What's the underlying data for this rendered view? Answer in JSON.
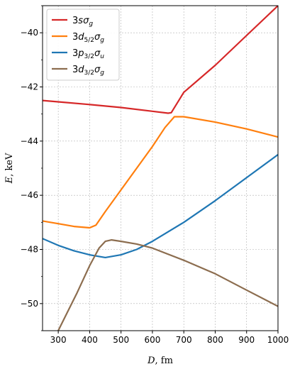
{
  "chart_data": {
    "type": "line",
    "xlabel_var": "D",
    "xlabel_unit": ", fm",
    "ylabel_var": "E",
    "ylabel_unit": ", keV",
    "xlim": [
      250,
      1000
    ],
    "ylim": [
      -51,
      -39
    ],
    "xticks": [
      300,
      400,
      500,
      600,
      700,
      800,
      900,
      1000
    ],
    "yticks": [
      -50,
      -48,
      -46,
      -44,
      -42,
      -40
    ],
    "grid": true,
    "legend_position": "top-left",
    "series": [
      {
        "name": "3sσg",
        "legend": {
          "main": "3",
          "ital": "s",
          "sym": "σ",
          "sub": "g",
          "frac": ""
        },
        "color": "#d62728",
        "x": [
          250,
          300,
          400,
          500,
          600,
          650,
          660,
          700,
          800,
          900,
          1000
        ],
        "y": [
          -42.5,
          -42.55,
          -42.65,
          -42.76,
          -42.9,
          -42.97,
          -42.95,
          -42.2,
          -41.2,
          -40.1,
          -39.0
        ]
      },
      {
        "name": "3d5/2σg",
        "legend": {
          "main": "3",
          "ital": "d",
          "frac": "5/2",
          "sym": "σ",
          "sub": "g"
        },
        "color": "#ff7f0e",
        "x": [
          250,
          300,
          350,
          400,
          420,
          450,
          500,
          550,
          600,
          640,
          670,
          700,
          800,
          900,
          1000
        ],
        "y": [
          -46.95,
          -47.05,
          -47.15,
          -47.2,
          -47.1,
          -46.6,
          -45.8,
          -45.0,
          -44.2,
          -43.5,
          -43.1,
          -43.1,
          -43.3,
          -43.55,
          -43.85
        ]
      },
      {
        "name": "3p3/2σu",
        "legend": {
          "main": "3",
          "ital": "p",
          "frac": "3/2",
          "sym": "σ",
          "sub": "u"
        },
        "color": "#1f77b4",
        "x": [
          250,
          300,
          350,
          400,
          450,
          500,
          550,
          600,
          700,
          800,
          900,
          1000
        ],
        "y": [
          -47.6,
          -47.85,
          -48.05,
          -48.2,
          -48.3,
          -48.2,
          -48.0,
          -47.7,
          -47.0,
          -46.2,
          -45.35,
          -44.5
        ]
      },
      {
        "name": "3d3/2σg",
        "legend": {
          "main": "3",
          "ital": "d",
          "frac": "3/2",
          "sym": "σ",
          "sub": "g"
        },
        "color": "#8c6d4f",
        "x": [
          300,
          330,
          360,
          400,
          430,
          450,
          470,
          500,
          550,
          600,
          700,
          800,
          900,
          1000
        ],
        "y": [
          -51.0,
          -50.3,
          -49.6,
          -48.6,
          -47.95,
          -47.7,
          -47.65,
          -47.7,
          -47.8,
          -47.95,
          -48.4,
          -48.9,
          -49.5,
          -50.1
        ]
      }
    ]
  }
}
